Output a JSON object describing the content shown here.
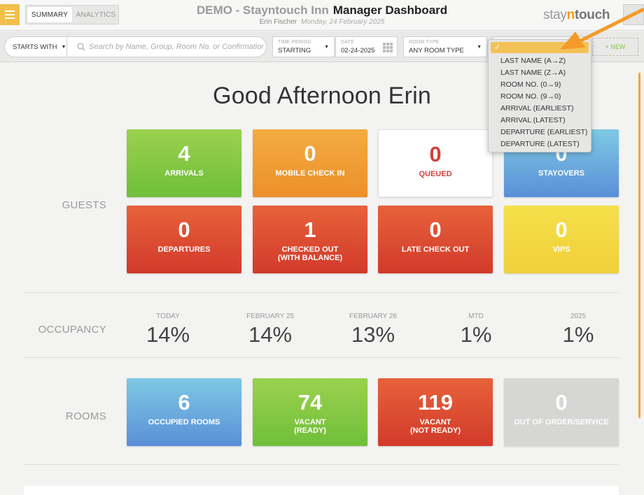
{
  "header": {
    "tabs": [
      {
        "label": "SUMMARY",
        "active": true
      },
      {
        "label": "ANALYTICS",
        "active": false
      }
    ],
    "hotel": "DEMO - Stayntouch Inn",
    "page_title": "Manager Dashboard",
    "user": "Erin Fischer",
    "date": "Monday, 24 February 2025",
    "brand": {
      "a": "stay",
      "n": "n",
      "b": "touch"
    }
  },
  "toolbar": {
    "starts_with": "STARTS WITH",
    "search_placeholder": "Search by Name, Group, Room No. or Confirmation",
    "time_period": {
      "label": "TIME PERIOD",
      "value": "STARTING"
    },
    "date": {
      "label": "DATE",
      "value": "02-24-2025"
    },
    "room_type": {
      "label": "ROOM TYPE",
      "value": "ANY ROOM TYPE"
    },
    "new_label": "+ NEW"
  },
  "sort_dropdown": {
    "selected": "✓",
    "options": [
      "LAST NAME (A→Z)",
      "LAST NAME (Z→A)",
      "ROOM NO. (0→9)",
      "ROOM NO. (9→0)",
      "ARRIVAL (EARLIEST)",
      "ARRIVAL (LATEST)",
      "DEPARTURE (EARLIEST)",
      "DEPARTURE (LATEST)"
    ]
  },
  "greeting": "Good Afternoon Erin",
  "guests": {
    "label": "GUESTS",
    "tiles": [
      {
        "value": "4",
        "label": "ARRIVALS"
      },
      {
        "value": "0",
        "label": "MOBILE CHECK IN"
      },
      {
        "value": "0",
        "label": "QUEUED"
      },
      {
        "value": "0",
        "label": "STAYOVERS"
      },
      {
        "value": "0",
        "label": "DEPARTURES"
      },
      {
        "value": "1",
        "label": "CHECKED OUT",
        "label2": "(WITH BALANCE)"
      },
      {
        "value": "0",
        "label": "LATE CHECK OUT"
      },
      {
        "value": "0",
        "label": "VIPS"
      }
    ]
  },
  "occupancy": {
    "label": "OCCUPANCY",
    "items": [
      {
        "label": "TODAY",
        "value": "14%"
      },
      {
        "label": "FEBRUARY 25",
        "value": "14%"
      },
      {
        "label": "FEBRUARY 26",
        "value": "13%"
      },
      {
        "label": "MTD",
        "value": "1%"
      },
      {
        "label": "2025",
        "value": "1%"
      }
    ]
  },
  "rooms": {
    "label": "ROOMS",
    "tiles": [
      {
        "value": "6",
        "label": "OCCUPIED ROOMS"
      },
      {
        "value": "74",
        "label": "VACANT",
        "label2": "(READY)"
      },
      {
        "value": "119",
        "label": "VACANT",
        "label2": "(NOT READY)"
      },
      {
        "value": "0",
        "label": "OUT OF ORDER/SERVICE"
      }
    ]
  },
  "colors": {
    "accent": "#f0c04a",
    "arrow": "#f39a2b",
    "green": "#7cc63f",
    "orange": "#f09b33",
    "red": "#d9452f",
    "blue": "#6aa9dd",
    "yellow": "#f2d73f",
    "grey": "#d6d6d5"
  }
}
